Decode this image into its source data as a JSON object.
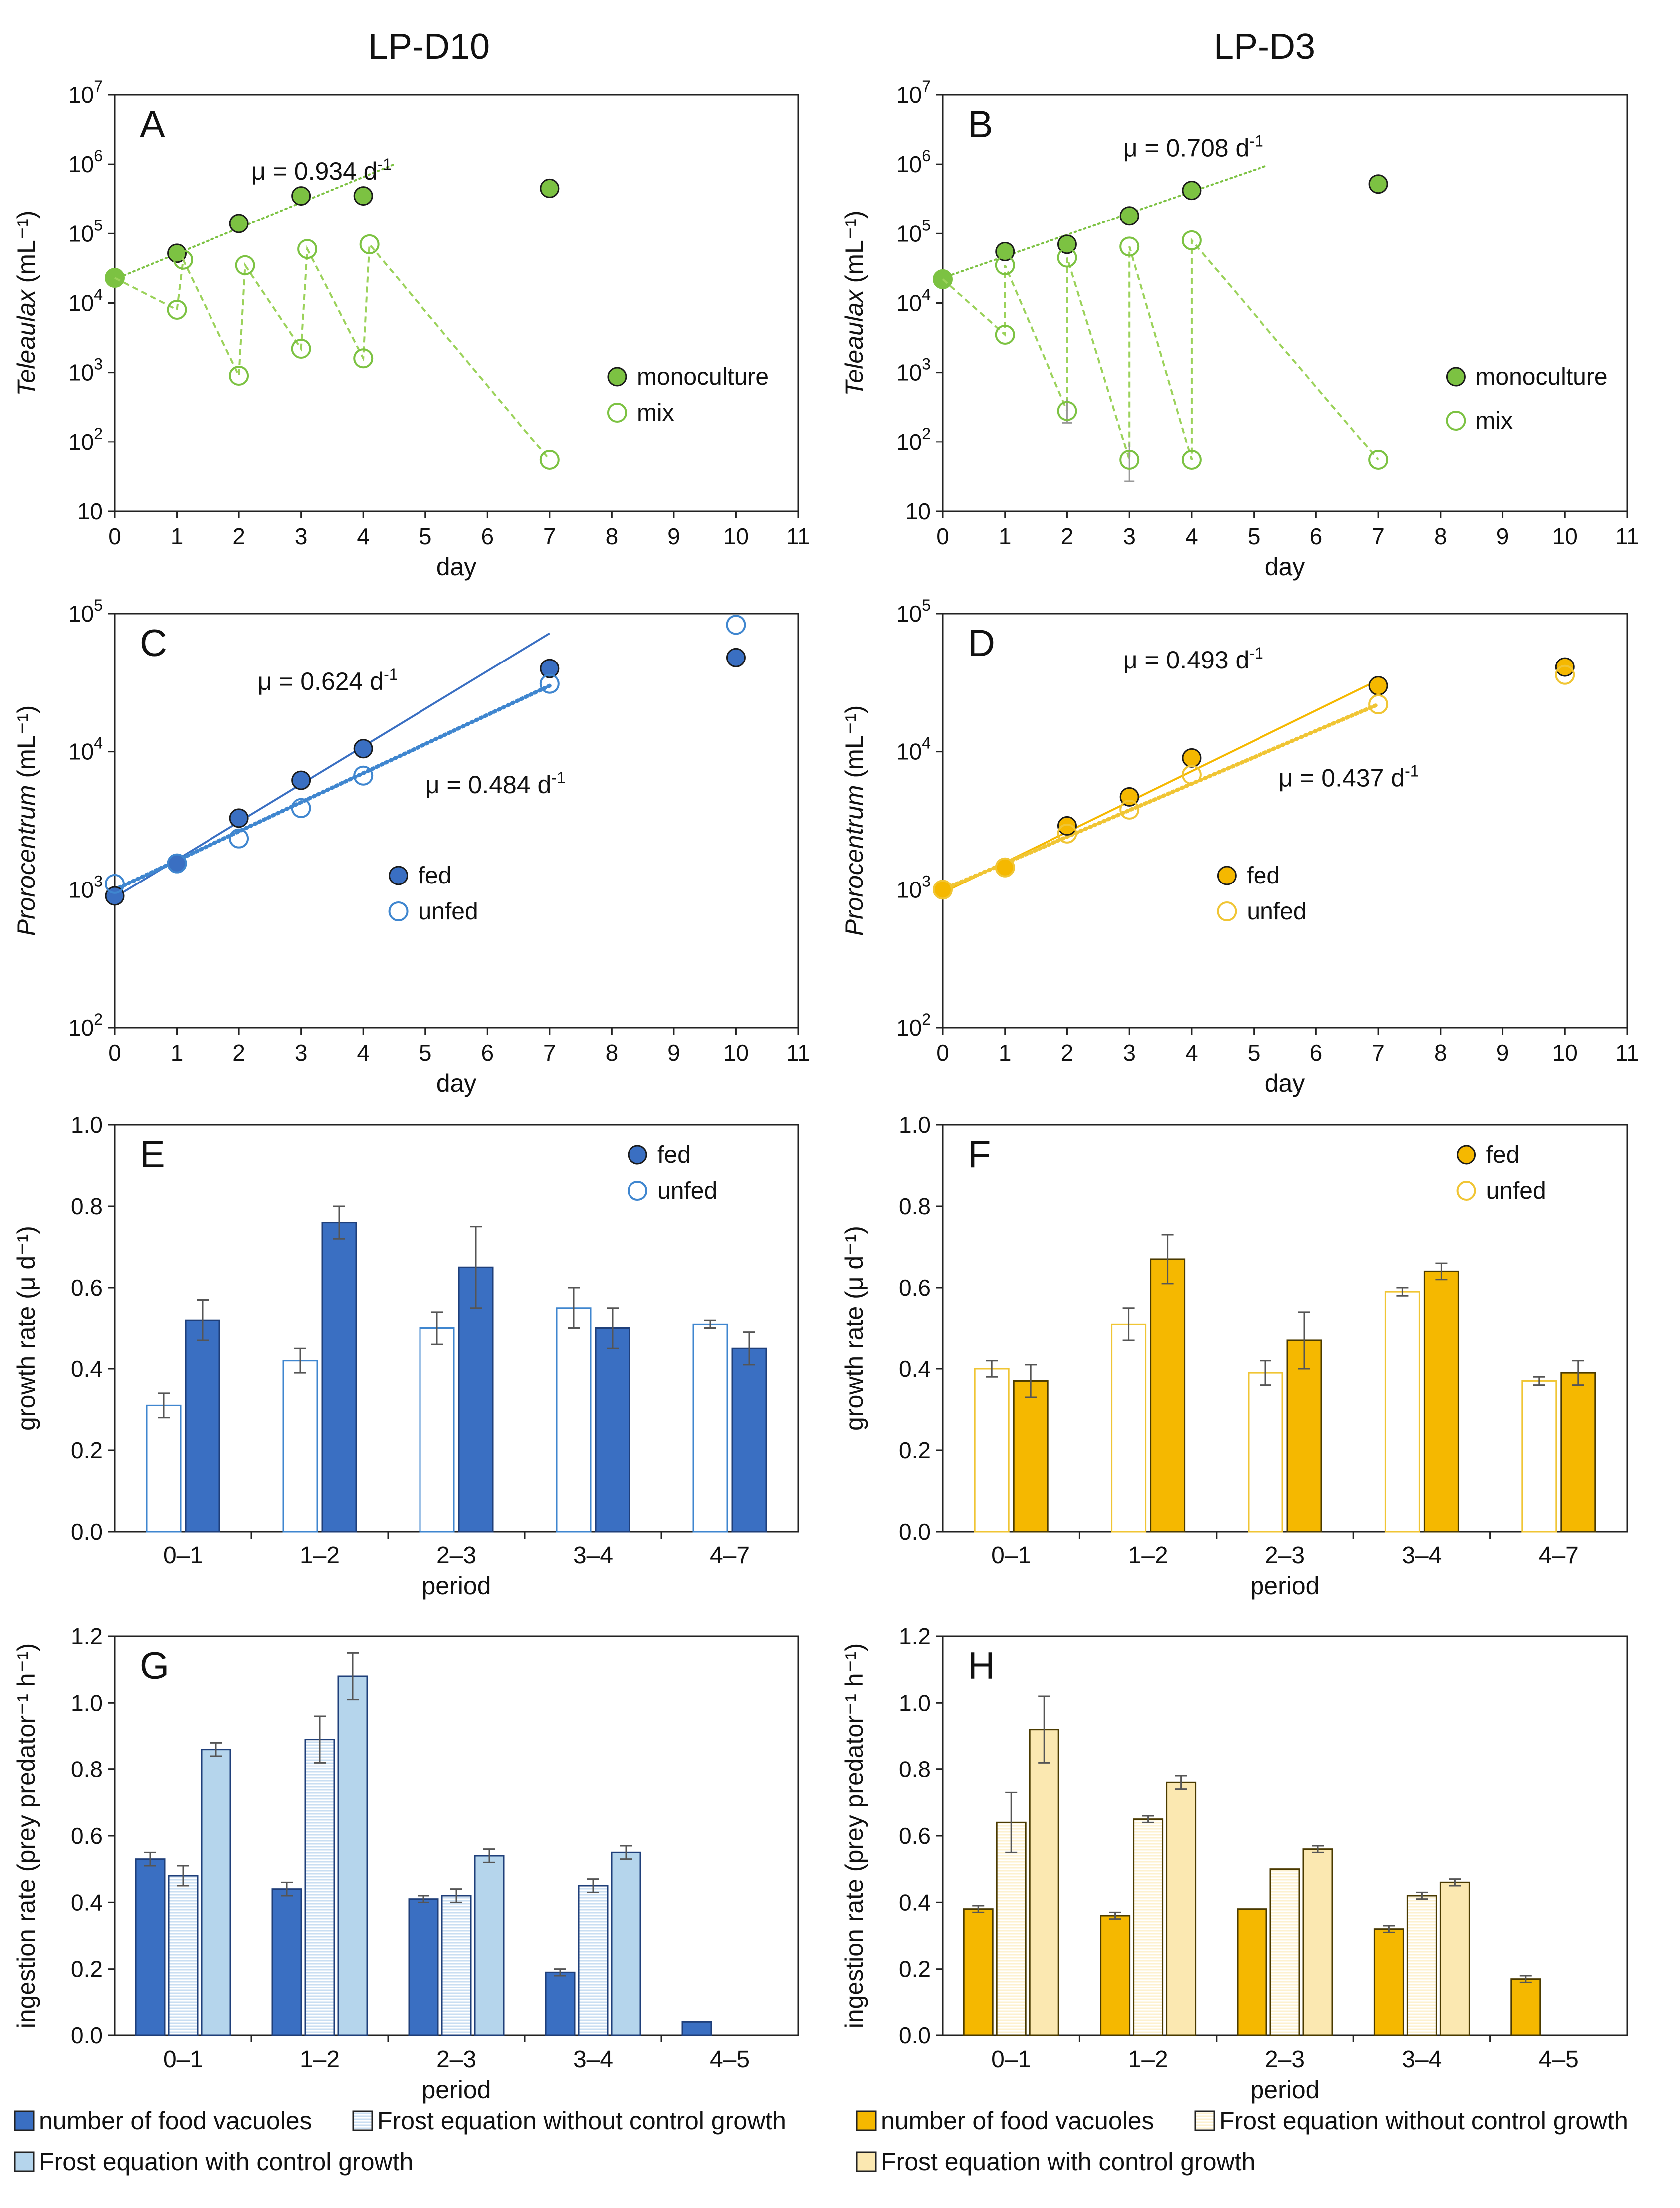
{
  "columns": [
    {
      "title": "LP-D10"
    },
    {
      "title": "LP-D3"
    }
  ],
  "colors": {
    "teleaulax_green": "#7cc242",
    "teleaulax_dash": "#9bd25a",
    "blue_fed": "#3a6fc2",
    "blue_unfed": "#3f86cf",
    "blue_light": "#b5d5ec",
    "blue_stripe": "#c9def2",
    "orange_fed": "#f5b800",
    "orange_unfed": "#f0c534",
    "cream": "#fbe8b1",
    "cream_stripe": "#fdf1cf",
    "error_bar": "#555555"
  },
  "chart_data": [
    {
      "id": "A",
      "type": "scatter",
      "yscale": "log",
      "xlabel": "day",
      "ylabel_italic": "Teleaulax",
      "ylabel_unit": " (mL⁻¹)",
      "xticks": [
        0,
        1,
        2,
        3,
        4,
        5,
        6,
        7,
        8,
        9,
        10,
        11
      ],
      "xlim": [
        0,
        11
      ],
      "ylim": [
        10,
        10000000
      ],
      "yticks": [
        {
          "value": 10,
          "base": "10",
          "exp": ""
        },
        {
          "value": 100,
          "base": "10",
          "exp": "2"
        },
        {
          "value": 1000,
          "base": "10",
          "exp": "3"
        },
        {
          "value": 10000,
          "base": "10",
          "exp": "4"
        },
        {
          "value": 100000,
          "base": "10",
          "exp": "5"
        },
        {
          "value": 1000000,
          "base": "10",
          "exp": "6"
        },
        {
          "value": 10000000,
          "base": "10",
          "exp": "7"
        }
      ],
      "annotation": {
        "text": "μ = 0.934 d",
        "sup": "-1",
        "x": 2.2,
        "y": 600000
      },
      "fit_lines": [
        {
          "style": "dotted",
          "color": "teleaulax_green",
          "x": [
            0,
            4.5
          ],
          "y": [
            22000,
            1000000
          ]
        }
      ],
      "series": [
        {
          "name": "monoculture",
          "marker": "filled",
          "color": "teleaulax_green",
          "x": [
            0,
            1,
            2,
            3,
            4,
            7
          ],
          "y": [
            23000,
            52000,
            140000,
            350000,
            350000,
            450000
          ]
        },
        {
          "name": "mix",
          "marker": "open",
          "color": "teleaulax_green",
          "line": "dashed",
          "x": [
            0,
            1,
            1.1,
            2,
            2.1,
            3,
            3.1,
            4,
            4.1,
            7
          ],
          "y": [
            23000,
            8000,
            42000,
            900,
            35000,
            2200,
            60000,
            1600,
            70000,
            55
          ]
        }
      ],
      "legend": [
        {
          "name": "monoculture",
          "marker": "filled",
          "color": "teleaulax_green"
        },
        {
          "name": "mix",
          "marker": "open",
          "color": "teleaulax_green"
        }
      ]
    },
    {
      "id": "B",
      "type": "scatter",
      "yscale": "log",
      "xlabel": "day",
      "ylabel_italic": "Teleaulax",
      "ylabel_unit": " (mL⁻¹)",
      "xticks": [
        0,
        1,
        2,
        3,
        4,
        5,
        6,
        7,
        8,
        9,
        10,
        11
      ],
      "xlim": [
        0,
        11
      ],
      "ylim": [
        10,
        10000000
      ],
      "yticks": [
        {
          "value": 10,
          "base": "10",
          "exp": ""
        },
        {
          "value": 100,
          "base": "10",
          "exp": "2"
        },
        {
          "value": 1000,
          "base": "10",
          "exp": "3"
        },
        {
          "value": 10000,
          "base": "10",
          "exp": "4"
        },
        {
          "value": 100000,
          "base": "10",
          "exp": "5"
        },
        {
          "value": 1000000,
          "base": "10",
          "exp": "6"
        },
        {
          "value": 10000000,
          "base": "10",
          "exp": "7"
        }
      ],
      "annotation": {
        "text": "μ = 0.708 d",
        "sup": "-1",
        "x": 2.9,
        "y": 1300000
      },
      "fit_lines": [
        {
          "style": "dotted",
          "color": "teleaulax_green",
          "x": [
            0,
            5.2
          ],
          "y": [
            23000,
            950000
          ]
        }
      ],
      "series": [
        {
          "name": "monoculture",
          "marker": "filled",
          "color": "teleaulax_green",
          "x": [
            0,
            1,
            2,
            3,
            4,
            7
          ],
          "y": [
            22000,
            55000,
            70000,
            180000,
            420000,
            520000
          ]
        },
        {
          "name": "mix",
          "marker": "open",
          "color": "teleaulax_green",
          "line": "dashed",
          "x": [
            0,
            1,
            1.0,
            2,
            2.0,
            3,
            3.0,
            4,
            4.0,
            7
          ],
          "y": [
            22000,
            3500,
            35000,
            280,
            45000,
            55,
            65000,
            55,
            80000,
            55
          ],
          "err": [
            0,
            0,
            0,
            130,
            0,
            40,
            0,
            0,
            0,
            0
          ]
        }
      ],
      "legend": [
        {
          "name": "monoculture",
          "marker": "filled",
          "color": "teleaulax_green"
        },
        {
          "name": "mix",
          "marker": "open",
          "color": "teleaulax_green"
        }
      ]
    },
    {
      "id": "C",
      "type": "scatter",
      "yscale": "log",
      "xlabel": "day",
      "ylabel_italic": "Prorocentrum",
      "ylabel_unit": " (mL⁻¹)",
      "xticks": [
        0,
        1,
        2,
        3,
        4,
        5,
        6,
        7,
        8,
        9,
        10,
        11
      ],
      "xlim": [
        0,
        11
      ],
      "ylim": [
        100,
        100000
      ],
      "yticks": [
        {
          "value": 100,
          "base": "10",
          "exp": "2"
        },
        {
          "value": 1000,
          "base": "10",
          "exp": "3"
        },
        {
          "value": 10000,
          "base": "10",
          "exp": "4"
        },
        {
          "value": 100000,
          "base": "10",
          "exp": "5"
        }
      ],
      "annotations": [
        {
          "text": "μ = 0.624 d",
          "sup": "-1",
          "x": 2.3,
          "y": 28000
        },
        {
          "text": "μ = 0.484 d",
          "sup": "-1",
          "x": 5.0,
          "y": 5000
        }
      ],
      "fit_lines": [
        {
          "style": "solid",
          "color": "blue_fed",
          "x": [
            0,
            7
          ],
          "y": [
            880,
            72000
          ]
        },
        {
          "style": "dotted",
          "color": "blue_unfed",
          "x": [
            0,
            7
          ],
          "y": [
            1000,
            30000
          ]
        }
      ],
      "series": [
        {
          "name": "fed",
          "marker": "filled",
          "color": "blue_fed",
          "x": [
            0,
            1,
            2,
            3,
            4,
            7,
            10
          ],
          "y": [
            900,
            1550,
            3300,
            6200,
            10500,
            40000,
            48000
          ]
        },
        {
          "name": "unfed",
          "marker": "open",
          "color": "blue_unfed",
          "x": [
            0,
            1,
            2,
            3,
            4,
            7,
            10
          ],
          "y": [
            1100,
            1550,
            2350,
            3900,
            6700,
            31000,
            83000
          ]
        }
      ],
      "legend": [
        {
          "name": "fed",
          "marker": "filled",
          "color": "blue_fed"
        },
        {
          "name": "unfed",
          "marker": "open",
          "color": "blue_unfed"
        }
      ]
    },
    {
      "id": "D",
      "type": "scatter",
      "yscale": "log",
      "xlabel": "day",
      "ylabel_italic": "Prorocentrum",
      "ylabel_unit": " (mL⁻¹)",
      "xticks": [
        0,
        1,
        2,
        3,
        4,
        5,
        6,
        7,
        8,
        9,
        10,
        11
      ],
      "xlim": [
        0,
        11
      ],
      "ylim": [
        100,
        100000
      ],
      "yticks": [
        {
          "value": 100,
          "base": "10",
          "exp": "2"
        },
        {
          "value": 1000,
          "base": "10",
          "exp": "3"
        },
        {
          "value": 10000,
          "base": "10",
          "exp": "4"
        },
        {
          "value": 100000,
          "base": "10",
          "exp": "5"
        }
      ],
      "annotations": [
        {
          "text": "μ = 0.493 d",
          "sup": "-1",
          "x": 2.9,
          "y": 40000
        },
        {
          "text": "μ = 0.437 d",
          "sup": "-1",
          "x": 5.4,
          "y": 5600
        }
      ],
      "fit_lines": [
        {
          "style": "solid",
          "color": "orange_fed",
          "x": [
            0,
            7
          ],
          "y": [
            950,
            33000
          ]
        },
        {
          "style": "dotted",
          "color": "orange_unfed",
          "x": [
            0,
            7
          ],
          "y": [
            1000,
            22000
          ]
        }
      ],
      "series": [
        {
          "name": "fed",
          "marker": "filled",
          "color": "orange_fed",
          "x": [
            0,
            1,
            2,
            3,
            4,
            7,
            10
          ],
          "y": [
            1000,
            1450,
            2900,
            4700,
            9000,
            30000,
            41000
          ]
        },
        {
          "name": "unfed",
          "marker": "open",
          "color": "orange_unfed",
          "x": [
            0,
            1,
            2,
            3,
            4,
            7,
            10
          ],
          "y": [
            1000,
            1450,
            2550,
            3800,
            6800,
            22000,
            36000
          ]
        }
      ],
      "legend": [
        {
          "name": "fed",
          "marker": "filled",
          "color": "orange_fed"
        },
        {
          "name": "unfed",
          "marker": "open",
          "color": "orange_unfed"
        }
      ]
    },
    {
      "id": "E",
      "type": "bar",
      "xlabel": "period",
      "ylabel": "growth rate (μ d⁻¹)",
      "categories": [
        "0–1",
        "1–2",
        "2–3",
        "3–4",
        "4–7"
      ],
      "ylim": [
        0,
        1.0
      ],
      "yticks": [
        "0.0",
        "0.2",
        "0.4",
        "0.6",
        "0.8",
        "1.0"
      ],
      "series": [
        {
          "name": "unfed",
          "fill": "#ffffff",
          "stroke": "blue_unfed",
          "values": [
            0.31,
            0.42,
            0.5,
            0.55,
            0.51
          ],
          "err": [
            0.03,
            0.03,
            0.04,
            0.05,
            0.01
          ]
        },
        {
          "name": "fed",
          "fill": "blue_fed",
          "stroke": "#1f3f7a",
          "values": [
            0.52,
            0.76,
            0.65,
            0.5,
            0.45
          ],
          "err": [
            0.05,
            0.04,
            0.1,
            0.05,
            0.04
          ]
        }
      ],
      "legend": [
        {
          "name": "fed",
          "marker": "filled",
          "color": "blue_fed"
        },
        {
          "name": "unfed",
          "marker": "open",
          "color": "blue_unfed"
        }
      ]
    },
    {
      "id": "F",
      "type": "bar",
      "xlabel": "period",
      "ylabel": "growth rate (μ d⁻¹)",
      "categories": [
        "0–1",
        "1–2",
        "2–3",
        "3–4",
        "4–7"
      ],
      "ylim": [
        0,
        1.0
      ],
      "yticks": [
        "0.0",
        "0.2",
        "0.4",
        "0.6",
        "0.8",
        "1.0"
      ],
      "series": [
        {
          "name": "unfed",
          "fill": "#ffffff",
          "stroke": "orange_unfed",
          "values": [
            0.4,
            0.51,
            0.39,
            0.59,
            0.37
          ],
          "err": [
            0.02,
            0.04,
            0.03,
            0.01,
            0.01
          ]
        },
        {
          "name": "fed",
          "fill": "orange_fed",
          "stroke": "#4a3a00",
          "values": [
            0.37,
            0.67,
            0.47,
            0.64,
            0.39
          ],
          "err": [
            0.04,
            0.06,
            0.07,
            0.02,
            0.03
          ]
        }
      ],
      "legend": [
        {
          "name": "fed",
          "marker": "filled",
          "color": "orange_fed"
        },
        {
          "name": "unfed",
          "marker": "open",
          "color": "orange_unfed"
        }
      ]
    },
    {
      "id": "G",
      "type": "bar",
      "xlabel": "period",
      "ylabel": "ingestion rate (prey predator⁻¹ h⁻¹)",
      "categories": [
        "0–1",
        "1–2",
        "2–3",
        "3–4",
        "4–5"
      ],
      "ylim": [
        0,
        1.2
      ],
      "yticks": [
        "0.0",
        "0.2",
        "0.4",
        "0.6",
        "0.8",
        "1.0",
        "1.2"
      ],
      "series": [
        {
          "name": "number of food vacuoles",
          "fill": "blue_fed",
          "stroke": "#1f3f7a",
          "pattern": "none",
          "values": [
            0.53,
            0.44,
            0.41,
            0.19,
            0.04
          ],
          "err": [
            0.02,
            0.02,
            0.01,
            0.01,
            0.0
          ]
        },
        {
          "name": "Frost equation without control growth",
          "fill": "blue_stripe",
          "stroke": "#1f3f7a",
          "pattern": "stripes",
          "values": [
            0.48,
            0.89,
            0.42,
            0.45,
            null
          ],
          "err": [
            0.03,
            0.07,
            0.02,
            0.02,
            0
          ]
        },
        {
          "name": "Frost equation with control growth",
          "fill": "blue_light",
          "stroke": "#1f3f7a",
          "pattern": "none",
          "values": [
            0.86,
            1.08,
            0.54,
            0.55,
            null
          ],
          "err": [
            0.02,
            0.07,
            0.02,
            0.02,
            0
          ]
        }
      ]
    },
    {
      "id": "H",
      "type": "bar",
      "xlabel": "period",
      "ylabel": "ingestion rate (prey predator⁻¹ h⁻¹)",
      "categories": [
        "0–1",
        "1–2",
        "2–3",
        "3–4",
        "4–5"
      ],
      "ylim": [
        0,
        1.2
      ],
      "yticks": [
        "0.0",
        "0.2",
        "0.4",
        "0.6",
        "0.8",
        "1.0",
        "1.2"
      ],
      "series": [
        {
          "name": "number of food vacuoles",
          "fill": "orange_fed",
          "stroke": "#4a3a00",
          "pattern": "none",
          "values": [
            0.38,
            0.36,
            0.38,
            0.32,
            0.17
          ],
          "err": [
            0.01,
            0.01,
            0.0,
            0.01,
            0.01
          ]
        },
        {
          "name": "Frost equation without control growth",
          "fill": "cream_stripe",
          "stroke": "#4a3a00",
          "pattern": "stripes",
          "values": [
            0.64,
            0.65,
            0.5,
            0.42,
            null
          ],
          "err": [
            0.09,
            0.01,
            0.0,
            0.01,
            0
          ]
        },
        {
          "name": "Frost equation with control growth",
          "fill": "cream",
          "stroke": "#4a3a00",
          "pattern": "none",
          "values": [
            0.92,
            0.76,
            0.56,
            0.46,
            null
          ],
          "err": [
            0.1,
            0.02,
            0.01,
            0.01,
            0
          ]
        }
      ]
    }
  ],
  "bottom_legends": [
    {
      "entries": [
        {
          "label": "number of food vacuoles",
          "fill": "blue_fed",
          "pattern": "none"
        },
        {
          "label": "Frost equation without control growth",
          "fill": "blue_stripe",
          "pattern": "stripes"
        },
        {
          "label": "Frost equation with control growth",
          "fill": "blue_light",
          "pattern": "none"
        }
      ]
    },
    {
      "entries": [
        {
          "label": "number of food vacuoles",
          "fill": "orange_fed",
          "pattern": "none"
        },
        {
          "label": "Frost equation without control growth",
          "fill": "cream_stripe",
          "pattern": "stripes"
        },
        {
          "label": "Frost equation with control growth",
          "fill": "cream",
          "pattern": "none"
        }
      ]
    }
  ]
}
